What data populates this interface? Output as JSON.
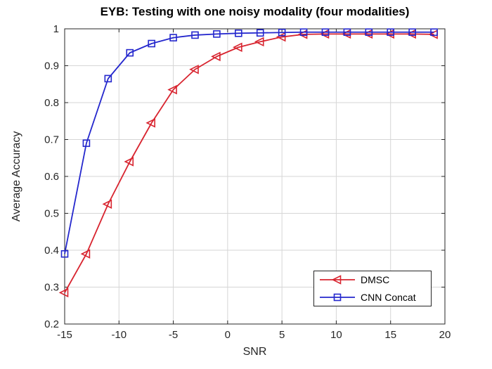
{
  "chart_data": {
    "type": "line",
    "title": "EYB: Testing with one noisy modality (four modalities)",
    "xlabel": "SNR",
    "ylabel": "Average Accuracy",
    "xlim": [
      -15,
      20
    ],
    "ylim": [
      0.2,
      1
    ],
    "grid": true,
    "legend_position": "lower right",
    "x_ticks": [
      -15,
      -10,
      -5,
      0,
      5,
      10,
      15,
      20
    ],
    "x_tick_labels": [
      "-15",
      "-10",
      "-5",
      "0",
      "5",
      "10",
      "15",
      "20"
    ],
    "y_ticks": [
      0.2,
      0.3,
      0.4,
      0.5,
      0.6,
      0.7,
      0.8,
      0.9,
      1
    ],
    "y_tick_labels": [
      "0.2",
      "0.3",
      "0.4",
      "0.5",
      "0.6",
      "0.7",
      "0.8",
      "0.9",
      "1"
    ],
    "x": [
      -15,
      -13,
      -11,
      -9,
      -7,
      -5,
      -3,
      -1,
      1,
      3,
      5,
      7,
      9,
      11,
      13,
      15,
      17,
      19
    ],
    "series": [
      {
        "name": "DMSC",
        "marker": "triangle-left",
        "color": "#d8242f",
        "values": [
          0.285,
          0.39,
          0.525,
          0.64,
          0.745,
          0.835,
          0.89,
          0.925,
          0.95,
          0.965,
          0.978,
          0.985,
          0.986,
          0.986,
          0.986,
          0.986,
          0.986,
          0.985
        ]
      },
      {
        "name": "CNN Concat",
        "marker": "square",
        "color": "#2427cd",
        "values": [
          0.39,
          0.69,
          0.865,
          0.935,
          0.96,
          0.976,
          0.983,
          0.986,
          0.988,
          0.989,
          0.99,
          0.991,
          0.991,
          0.991,
          0.991,
          0.991,
          0.991,
          0.991
        ]
      }
    ],
    "colors": {
      "grid": "#d6d6d6",
      "axis": "#262626",
      "tick_text": "#262626",
      "title_text": "#000000",
      "background": "#ffffff"
    }
  }
}
